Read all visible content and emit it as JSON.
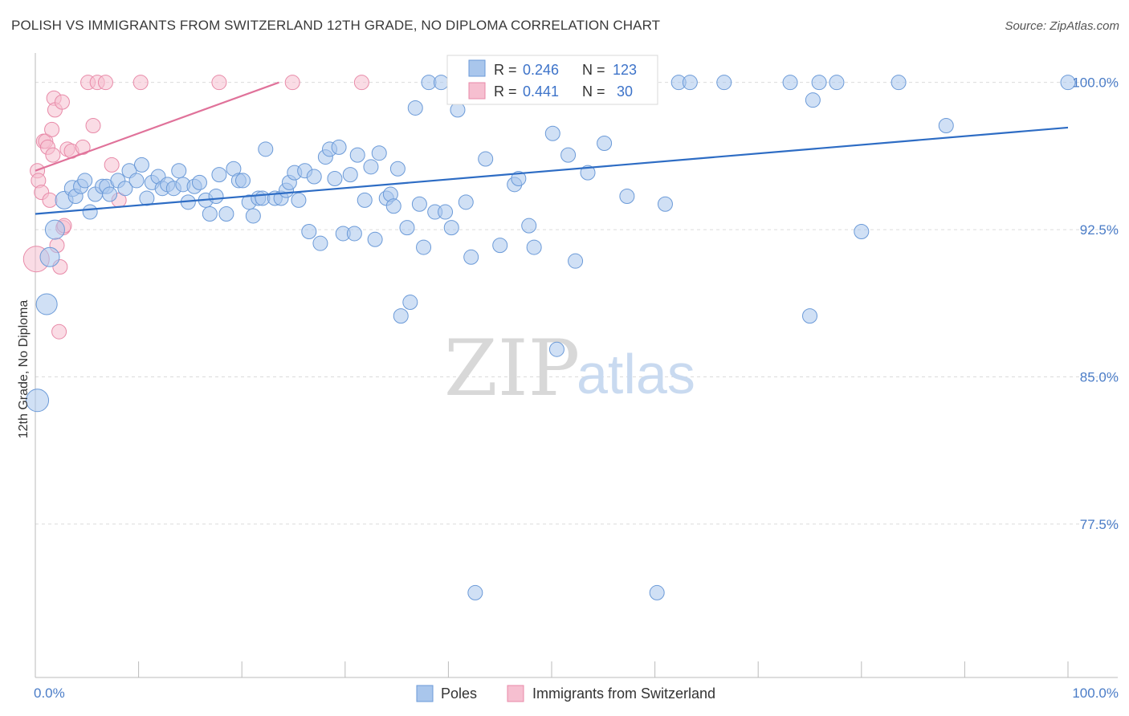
{
  "header": {
    "title": "POLISH VS IMMIGRANTS FROM SWITZERLAND 12TH GRADE, NO DIPLOMA CORRELATION CHART",
    "source": "Source: ZipAtlas.com"
  },
  "watermark": {
    "zip": "ZIP",
    "atlas": "atlas"
  },
  "legend_box": {
    "rows": [
      {
        "r_label": "R =",
        "r_value": "0.246",
        "n_label": "N =",
        "n_value": "123"
      },
      {
        "r_label": "R =",
        "r_value": "0.441",
        "n_label": "N =",
        "n_value": "30"
      }
    ]
  },
  "chart_data": {
    "type": "scatter",
    "title": "POLISH VS IMMIGRANTS FROM SWITZERLAND 12TH GRADE, NO DIPLOMA CORRELATION CHART",
    "xlabel": "",
    "ylabel": "12th Grade, No Diploma",
    "xlim": [
      0,
      100
    ],
    "ylim": [
      70.5,
      101.5
    ],
    "x_tick_labels": [
      "0.0%",
      "100.0%"
    ],
    "y_ticks": [
      {
        "value": 100.0,
        "label": "100.0%"
      },
      {
        "value": 92.5,
        "label": "92.5%"
      },
      {
        "value": 85.0,
        "label": "85.0%"
      },
      {
        "value": 77.5,
        "label": "77.5%"
      }
    ],
    "grid": true,
    "legend_position": "bottom",
    "colors": {
      "poles_fill": "#a9c6ec",
      "poles_stroke": "#6b9ad8",
      "poles_line": "#2d6cc4",
      "swiss_fill": "#f6bfd0",
      "swiss_stroke": "#e88aa8",
      "swiss_line": "#e0729a"
    },
    "series": [
      {
        "name": "Poles",
        "r": 0.246,
        "n": 123,
        "trend": {
          "x0": 0,
          "y0": 93.3,
          "x1": 100,
          "y1": 97.7
        },
        "points": [
          [
            0.2,
            83.8,
            14
          ],
          [
            1.1,
            88.7,
            13
          ],
          [
            1.4,
            91.1,
            12
          ],
          [
            1.9,
            92.5,
            12
          ],
          [
            2.8,
            94.0,
            11
          ],
          [
            3.6,
            94.6,
            10
          ],
          [
            3.9,
            94.2,
            9
          ],
          [
            4.4,
            94.7,
            9
          ],
          [
            4.8,
            95.0,
            9
          ],
          [
            5.3,
            93.4,
            9
          ],
          [
            5.8,
            94.3,
            9
          ],
          [
            6.5,
            94.7,
            9
          ],
          [
            6.9,
            94.7,
            9
          ],
          [
            7.2,
            94.3,
            9
          ],
          [
            8.0,
            95.0,
            9
          ],
          [
            8.7,
            94.6,
            9
          ],
          [
            9.1,
            95.5,
            9
          ],
          [
            9.8,
            95.0,
            9
          ],
          [
            10.3,
            95.8,
            9
          ],
          [
            10.8,
            94.1,
            9
          ],
          [
            11.3,
            94.9,
            9
          ],
          [
            11.9,
            95.2,
            9
          ],
          [
            12.3,
            94.6,
            9
          ],
          [
            12.8,
            94.8,
            9
          ],
          [
            13.4,
            94.6,
            9
          ],
          [
            13.9,
            95.5,
            9
          ],
          [
            14.3,
            94.8,
            9
          ],
          [
            14.8,
            93.9,
            9
          ],
          [
            15.4,
            94.7,
            9
          ],
          [
            15.9,
            94.9,
            9
          ],
          [
            16.5,
            94.0,
            9
          ],
          [
            16.9,
            93.3,
            9
          ],
          [
            17.5,
            94.2,
            9
          ],
          [
            17.8,
            95.3,
            9
          ],
          [
            18.5,
            93.3,
            9
          ],
          [
            19.2,
            95.6,
            9
          ],
          [
            19.7,
            95.0,
            9
          ],
          [
            20.1,
            95.0,
            9
          ],
          [
            20.7,
            93.9,
            9
          ],
          [
            21.1,
            93.2,
            9
          ],
          [
            21.6,
            94.1,
            9
          ],
          [
            22.0,
            94.1,
            9
          ],
          [
            22.3,
            96.6,
            9
          ],
          [
            23.2,
            94.1,
            9
          ],
          [
            23.8,
            94.1,
            9
          ],
          [
            24.3,
            94.5,
            9
          ],
          [
            24.6,
            94.9,
            9
          ],
          [
            25.1,
            95.4,
            9
          ],
          [
            25.5,
            94.0,
            9
          ],
          [
            26.1,
            95.5,
            9
          ],
          [
            26.5,
            92.4,
            9
          ],
          [
            27.0,
            95.2,
            9
          ],
          [
            27.6,
            91.8,
            9
          ],
          [
            28.1,
            96.2,
            9
          ],
          [
            28.5,
            96.6,
            9
          ],
          [
            29.0,
            95.1,
            9
          ],
          [
            29.4,
            96.7,
            9
          ],
          [
            29.8,
            92.3,
            9
          ],
          [
            30.5,
            95.3,
            9
          ],
          [
            30.9,
            92.3,
            9
          ],
          [
            31.2,
            96.3,
            9
          ],
          [
            31.9,
            94.0,
            9
          ],
          [
            32.5,
            95.7,
            9
          ],
          [
            32.9,
            92.0,
            9
          ],
          [
            33.3,
            96.4,
            9
          ],
          [
            34.0,
            94.1,
            9
          ],
          [
            34.4,
            94.3,
            9
          ],
          [
            34.7,
            93.7,
            9
          ],
          [
            35.1,
            95.6,
            9
          ],
          [
            35.4,
            88.1,
            9
          ],
          [
            36.0,
            92.6,
            9
          ],
          [
            36.3,
            88.8,
            9
          ],
          [
            36.8,
            98.7,
            9
          ],
          [
            37.2,
            93.8,
            9
          ],
          [
            37.6,
            91.6,
            9
          ],
          [
            38.1,
            100.0,
            9
          ],
          [
            38.7,
            93.4,
            9
          ],
          [
            39.3,
            100.0,
            9
          ],
          [
            39.7,
            93.4,
            9
          ],
          [
            40.3,
            92.6,
            9
          ],
          [
            40.9,
            98.6,
            9
          ],
          [
            41.7,
            93.9,
            9
          ],
          [
            42.2,
            91.1,
            9
          ],
          [
            42.6,
            74.0,
            9
          ],
          [
            43.2,
            100.0,
            9
          ],
          [
            43.6,
            96.1,
            9
          ],
          [
            44.1,
            100.0,
            9
          ],
          [
            45.0,
            91.7,
            9
          ],
          [
            45.6,
            100.0,
            9
          ],
          [
            46.4,
            94.8,
            9
          ],
          [
            46.8,
            95.1,
            9
          ],
          [
            47.3,
            100.0,
            9
          ],
          [
            47.8,
            92.7,
            9
          ],
          [
            48.3,
            91.6,
            9
          ],
          [
            48.9,
            100.0,
            9
          ],
          [
            49.5,
            100.0,
            9
          ],
          [
            50.1,
            97.4,
            9
          ],
          [
            50.5,
            86.4,
            9
          ],
          [
            51.1,
            100.0,
            9
          ],
          [
            51.6,
            96.3,
            9
          ],
          [
            52.0,
            100.0,
            9
          ],
          [
            52.3,
            90.9,
            9
          ],
          [
            53.5,
            95.4,
            9
          ],
          [
            54.0,
            100.0,
            9
          ],
          [
            54.6,
            100.0,
            9
          ],
          [
            55.1,
            96.9,
            9
          ],
          [
            55.8,
            100.0,
            9
          ],
          [
            57.3,
            94.2,
            9
          ],
          [
            60.2,
            74.0,
            9
          ],
          [
            61.0,
            93.8,
            9
          ],
          [
            62.3,
            100.0,
            9
          ],
          [
            63.4,
            100.0,
            9
          ],
          [
            66.7,
            100.0,
            9
          ],
          [
            73.1,
            100.0,
            9
          ],
          [
            75.0,
            88.1,
            9
          ],
          [
            75.3,
            99.1,
            9
          ],
          [
            75.9,
            100.0,
            9
          ],
          [
            77.6,
            100.0,
            9
          ],
          [
            80.0,
            92.4,
            9
          ],
          [
            83.6,
            100.0,
            9
          ],
          [
            88.2,
            97.8,
            9
          ],
          [
            100.0,
            100.0,
            9
          ]
        ]
      },
      {
        "name": "Immigrants from Switzerland",
        "r": 0.441,
        "n": 30,
        "trend": {
          "x0": 0,
          "y0": 95.5,
          "x1": 23.6,
          "y1": 100.0
        },
        "points": [
          [
            0.1,
            91.0,
            16
          ],
          [
            0.2,
            95.5,
            9
          ],
          [
            0.3,
            95.0,
            9
          ],
          [
            0.6,
            94.4,
            9
          ],
          [
            0.8,
            97.0,
            9
          ],
          [
            1.0,
            97.0,
            9
          ],
          [
            1.2,
            96.7,
            9
          ],
          [
            1.4,
            94.0,
            9
          ],
          [
            1.6,
            97.6,
            9
          ],
          [
            1.7,
            96.3,
            9
          ],
          [
            1.8,
            99.2,
            9
          ],
          [
            1.9,
            98.6,
            9
          ],
          [
            2.1,
            91.7,
            9
          ],
          [
            2.3,
            87.3,
            9
          ],
          [
            2.4,
            90.6,
            9
          ],
          [
            2.6,
            99.0,
            9
          ],
          [
            2.7,
            92.6,
            9
          ],
          [
            2.8,
            92.7,
            9
          ],
          [
            3.1,
            96.6,
            9
          ],
          [
            3.5,
            96.5,
            9
          ],
          [
            4.6,
            96.7,
            9
          ],
          [
            5.1,
            100.0,
            9
          ],
          [
            5.6,
            97.8,
            9
          ],
          [
            6.0,
            100.0,
            9
          ],
          [
            6.8,
            100.0,
            9
          ],
          [
            7.4,
            95.8,
            9
          ],
          [
            8.1,
            94.0,
            9
          ],
          [
            10.2,
            100.0,
            9
          ],
          [
            17.8,
            100.0,
            9
          ],
          [
            24.9,
            100.0,
            9
          ],
          [
            31.6,
            100.0,
            9
          ]
        ]
      }
    ]
  }
}
